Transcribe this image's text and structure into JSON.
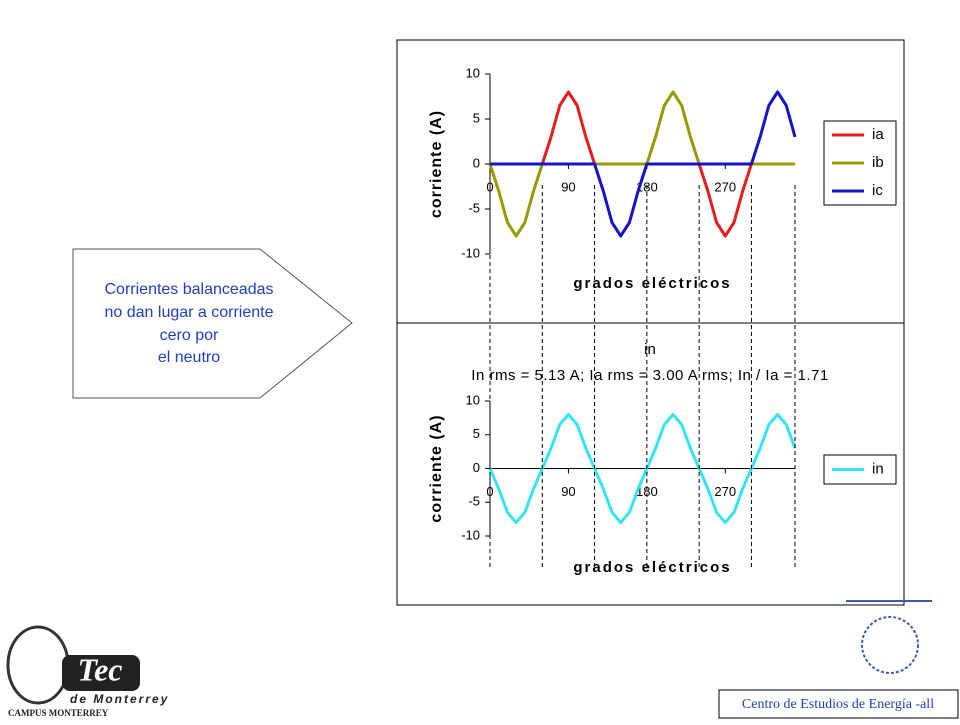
{
  "callout": [
    "Corrientes balanceadas",
    "no dan lugar a corriente",
    "cero por",
    "el neutro"
  ],
  "logo": {
    "name": "Tec",
    "line2": "de Monterrey",
    "line3": "CAMPUS MONTERREY"
  },
  "footer": "Centro de Estudios de Energía -all",
  "guide_lines": [
    0,
    60,
    120,
    180,
    240,
    300,
    350
  ],
  "chart_data": [
    {
      "type": "line",
      "xlabel": "grados eléctricos",
      "ylabel": "corriente (A)",
      "x": [
        0,
        10,
        20,
        30,
        40,
        50,
        60,
        70,
        80,
        90,
        100,
        110,
        120,
        130,
        140,
        150,
        160,
        170,
        180,
        190,
        200,
        210,
        220,
        230,
        240,
        250,
        260,
        270,
        280,
        290,
        300,
        310,
        320,
        330,
        340,
        350
      ],
      "xlim": [
        0,
        350
      ],
      "xticks": [
        0,
        90,
        180,
        270
      ],
      "ylim": [
        -10,
        10
      ],
      "yticks": [
        -10,
        -5,
        0,
        5,
        10
      ],
      "legend": "right",
      "series": [
        {
          "name": "ia",
          "color": "#e41e1e",
          "values": [
            0,
            0,
            0,
            0,
            0,
            0,
            0,
            3,
            6.5,
            8,
            6.5,
            3,
            0,
            0,
            0,
            0,
            0,
            0,
            0,
            0,
            0,
            0,
            0,
            0,
            0,
            -3,
            -6.5,
            -8,
            -6.5,
            -3,
            0,
            0,
            0,
            0,
            0,
            0
          ]
        },
        {
          "name": "ib",
          "color": "#999900",
          "values": [
            0,
            -3,
            -6.5,
            -8,
            -6.5,
            -3,
            0,
            0,
            0,
            0,
            0,
            0,
            0,
            0,
            0,
            0,
            0,
            0,
            0,
            3,
            6.5,
            8,
            6.5,
            3,
            0,
            0,
            0,
            0,
            0,
            0,
            0,
            0,
            0,
            0,
            0,
            0
          ]
        },
        {
          "name": "ic",
          "color": "#1414c8",
          "values": [
            0,
            0,
            0,
            0,
            0,
            0,
            0,
            0,
            0,
            0,
            0,
            0,
            0,
            -3,
            -6.5,
            -8,
            -6.5,
            -3,
            0,
            0,
            0,
            0,
            0,
            0,
            0,
            0,
            0,
            0,
            0,
            0,
            0,
            3,
            6.5,
            8,
            6.5,
            3
          ]
        }
      ]
    },
    {
      "type": "line",
      "title": "in",
      "subtitle": "In rms = 5.13 A; Ia rms = 3.00 A rms; In / Ia = 1.71",
      "xlabel": "grados eléctricos",
      "ylabel": "corriente (A)",
      "x": [
        0,
        10,
        20,
        30,
        40,
        50,
        60,
        70,
        80,
        90,
        100,
        110,
        120,
        130,
        140,
        150,
        160,
        170,
        180,
        190,
        200,
        210,
        220,
        230,
        240,
        250,
        260,
        270,
        280,
        290,
        300,
        310,
        320,
        330,
        340,
        350
      ],
      "xlim": [
        0,
        350
      ],
      "xticks": [
        0,
        90,
        180,
        270
      ],
      "ylim": [
        -10,
        10
      ],
      "yticks": [
        -10,
        -5,
        0,
        5,
        10
      ],
      "legend": "right",
      "series": [
        {
          "name": "in",
          "color": "#33e5f0",
          "values": [
            0,
            -3,
            -6.5,
            -8,
            -6.5,
            -3,
            0,
            3,
            6.5,
            8,
            6.5,
            3,
            0,
            -3,
            -6.5,
            -8,
            -6.5,
            -3,
            0,
            3,
            6.5,
            8,
            6.5,
            3,
            0,
            -3,
            -6.5,
            -8,
            -6.5,
            -3,
            0,
            3,
            6.5,
            8,
            6.5,
            3
          ]
        }
      ]
    }
  ]
}
